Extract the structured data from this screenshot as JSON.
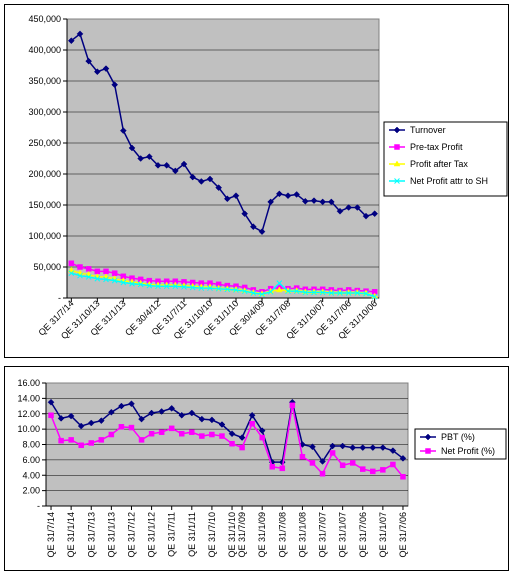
{
  "chart_data": [
    {
      "type": "line",
      "title": "",
      "xlabel": "",
      "ylabel": "",
      "ylim": [
        0,
        450000
      ],
      "y_ticks": [
        "450,000",
        "400,000",
        "350,000",
        "300,000",
        "250,000",
        "200,000",
        "150,000",
        "100,000",
        "50,000",
        "-"
      ],
      "x_tick_labels": [
        "QE 31/7/14",
        "QE 31/10/13",
        "QE 31/1/13",
        "QE 30/4/12",
        "QE 31/7/11",
        "QE 31/10/10",
        "QE 31/1/10",
        "QE 30/4/09",
        "QE 31/7/08",
        "QE 31/10/07",
        "QE 31/7/06",
        "QE 31/10/06"
      ],
      "grid": "horizontal",
      "plot_background": "#c0c0c0",
      "legend_position": "right",
      "series": [
        {
          "name": "Turnover",
          "color": "#000080",
          "marker": "diamond",
          "values": [
            415000,
            426000,
            382000,
            365000,
            370000,
            344000,
            270000,
            242000,
            225000,
            228000,
            214000,
            214000,
            205000,
            216000,
            195000,
            188000,
            192000,
            178000,
            160000,
            165000,
            136000,
            115000,
            107000,
            155000,
            168000,
            165000,
            167000,
            156000,
            157000,
            155000,
            155000,
            140000,
            146000,
            146000,
            132000,
            136000
          ]
        },
        {
          "name": "Pre-tax Profit",
          "color": "#ff00ff",
          "marker": "square",
          "values": [
            56000,
            50000,
            47000,
            43000,
            43000,
            40000,
            35000,
            32000,
            30000,
            28000,
            27000,
            27000,
            27000,
            26000,
            25000,
            24000,
            24000,
            22000,
            20000,
            19000,
            17000,
            13000,
            10000,
            15000,
            17000,
            15000,
            16000,
            14000,
            14000,
            14000,
            13000,
            12000,
            13000,
            12000,
            11000,
            10000
          ]
        },
        {
          "name": "Profit after Tax",
          "color": "#ffff00",
          "marker": "triangle",
          "values": [
            45000,
            40000,
            38000,
            34000,
            34000,
            31000,
            28000,
            26000,
            24000,
            22000,
            21000,
            21000,
            21000,
            20000,
            19000,
            18000,
            18000,
            16000,
            15000,
            14000,
            12000,
            9000,
            7000,
            11000,
            13000,
            12000,
            12000,
            10000,
            10000,
            10000,
            9000,
            9000,
            9000,
            9000,
            8000,
            3000
          ]
        },
        {
          "name": "Net Profit attr to SH",
          "color": "#00ffff",
          "marker": "x",
          "values": [
            40000,
            36000,
            34000,
            31000,
            30000,
            28000,
            25000,
            23000,
            22000,
            20000,
            19000,
            19000,
            19000,
            18000,
            17000,
            16000,
            16000,
            15000,
            14000,
            13000,
            11000,
            8000,
            6000,
            10000,
            24000,
            11000,
            11000,
            9000,
            9000,
            9000,
            8000,
            8000,
            8000,
            8000,
            7000,
            2000
          ]
        }
      ]
    },
    {
      "type": "line",
      "title": "",
      "xlabel": "",
      "ylabel": "",
      "ylim": [
        0,
        16
      ],
      "y_ticks": [
        "16.00",
        "14.00",
        "12.00",
        "10.00",
        "8.00",
        "6.00",
        "4.00",
        "2.00",
        "-"
      ],
      "x_tick_labels": [
        "QE 31/7/14",
        "QE 31/1/14",
        "QE 31/7/13",
        "QE 31/1/13",
        "QE 31/7/12",
        "QE 31/1/12",
        "QE 31/7/11",
        "QE 31/1/11",
        "QE 31/7/10",
        "QE 31/1/10",
        "QE 31/7/09",
        "QE 31/1/09",
        "QE 31/7/08",
        "QE 31/1/08",
        "QE 31/7/07",
        "QE 31/1/07",
        "QE 31/7/06",
        "QE 31/1/07",
        "QE 31/7/06"
      ],
      "grid": "horizontal",
      "plot_background": "#c0c0c0",
      "legend_position": "right",
      "series": [
        {
          "name": "PBT (%)",
          "color": "#000080",
          "marker": "diamond",
          "values": [
            13.5,
            11.4,
            11.7,
            10.4,
            10.8,
            11.1,
            12.2,
            13.0,
            13.3,
            11.3,
            12.1,
            12.3,
            12.7,
            11.8,
            12.1,
            11.3,
            11.2,
            10.6,
            9.4,
            8.9,
            11.8,
            9.8,
            5.7,
            5.7,
            13.5,
            8.0,
            7.7,
            5.8,
            7.8,
            7.8,
            7.6,
            7.6,
            7.6,
            7.6,
            7.2,
            6.2
          ]
        },
        {
          "name": "Net Profit (%)",
          "color": "#ff00ff",
          "marker": "square",
          "values": [
            11.8,
            8.5,
            8.6,
            7.9,
            8.2,
            8.6,
            9.3,
            10.3,
            10.2,
            8.6,
            9.4,
            9.6,
            10.1,
            9.4,
            9.6,
            9.1,
            9.3,
            9.1,
            8.1,
            7.6,
            10.7,
            8.9,
            5.1,
            4.9,
            13.1,
            6.4,
            5.6,
            4.2,
            6.9,
            5.3,
            5.6,
            4.8,
            4.5,
            4.7,
            5.4,
            3.8
          ]
        }
      ]
    }
  ]
}
